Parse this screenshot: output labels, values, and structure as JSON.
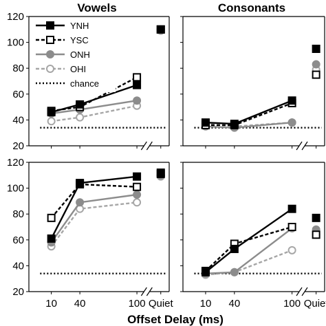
{
  "titles": {
    "left": "Vowels",
    "right": "Consonants"
  },
  "xlabel": "Offset Delay (ms)",
  "legend": [
    "YNH",
    "YSC",
    "ONH",
    "OHI",
    "chance"
  ],
  "colors": {
    "black": "#000000",
    "gray": "#8c8c8c",
    "light_gray": "#a6a6a6"
  },
  "chart_data": [
    {
      "type": "line",
      "panel": "top-left",
      "title": "Vowels",
      "x": [
        10,
        40,
        100
      ],
      "quiet_label": "Quiet",
      "ylim": [
        20,
        120
      ],
      "yticks": [
        20,
        40,
        60,
        80,
        100,
        120
      ],
      "xticks": [
        "10",
        "40",
        "100",
        "Quiet"
      ],
      "chance": 34,
      "legend_position": "top-left",
      "series": [
        {
          "name": "YNH",
          "values": [
            46,
            52,
            67
          ],
          "quiet": 110
        },
        {
          "name": "YSC",
          "values": [
            47,
            50,
            73
          ],
          "quiet": 110
        },
        {
          "name": "ONH",
          "values": [
            45,
            48,
            55
          ],
          "quiet": 110
        },
        {
          "name": "OHI",
          "values": [
            39,
            42,
            51
          ],
          "quiet": 109
        }
      ]
    },
    {
      "type": "line",
      "panel": "top-right",
      "title": "Consonants",
      "x": [
        10,
        40,
        100
      ],
      "quiet_label": "Quiet",
      "ylim": [
        20,
        120
      ],
      "yticks": [
        20,
        40,
        60,
        80,
        100,
        120
      ],
      "xticks": [
        "10",
        "40",
        "100",
        "Quiet"
      ],
      "chance": 34,
      "series": [
        {
          "name": "YNH",
          "values": [
            38,
            37,
            55
          ],
          "quiet": 95
        },
        {
          "name": "YSC",
          "values": [
            36,
            36,
            53
          ],
          "quiet": 75
        },
        {
          "name": "ONH",
          "values": [
            35,
            34,
            38
          ],
          "quiet": 83
        },
        {
          "name": "OHI",
          "values": [
            37,
            35,
            38
          ],
          "quiet": 79
        }
      ]
    },
    {
      "type": "line",
      "panel": "bottom-left",
      "x": [
        10,
        40,
        100
      ],
      "quiet_label": "Quiet",
      "ylim": [
        20,
        120
      ],
      "yticks": [
        20,
        40,
        60,
        80,
        100,
        120
      ],
      "xticks": [
        "10",
        "40",
        "100",
        "Quiet"
      ],
      "chance": 34,
      "series": [
        {
          "name": "YNH",
          "values": [
            61,
            104,
            109
          ],
          "quiet": 112
        },
        {
          "name": "YSC",
          "values": [
            77,
            103,
            101
          ],
          "quiet": 111
        },
        {
          "name": "ONH",
          "values": [
            58,
            89,
            95
          ],
          "quiet": 110
        },
        {
          "name": "OHI",
          "values": [
            55,
            84,
            89
          ],
          "quiet": 109
        }
      ]
    },
    {
      "type": "line",
      "panel": "bottom-right",
      "x": [
        10,
        40,
        100
      ],
      "quiet_label": "Quiet",
      "ylim": [
        20,
        120
      ],
      "yticks": [
        20,
        40,
        60,
        80,
        100,
        120
      ],
      "xticks": [
        "10",
        "40",
        "100",
        "Quiet"
      ],
      "chance": 34,
      "series": [
        {
          "name": "YNH",
          "values": [
            35,
            53,
            84
          ],
          "quiet": 77
        },
        {
          "name": "YSC",
          "values": [
            36,
            57,
            70
          ],
          "quiet": 64
        },
        {
          "name": "ONH",
          "values": [
            34,
            35,
            69
          ],
          "quiet": 68
        },
        {
          "name": "OHI",
          "values": [
            33,
            35,
            52
          ],
          "quiet": 64
        }
      ]
    }
  ]
}
